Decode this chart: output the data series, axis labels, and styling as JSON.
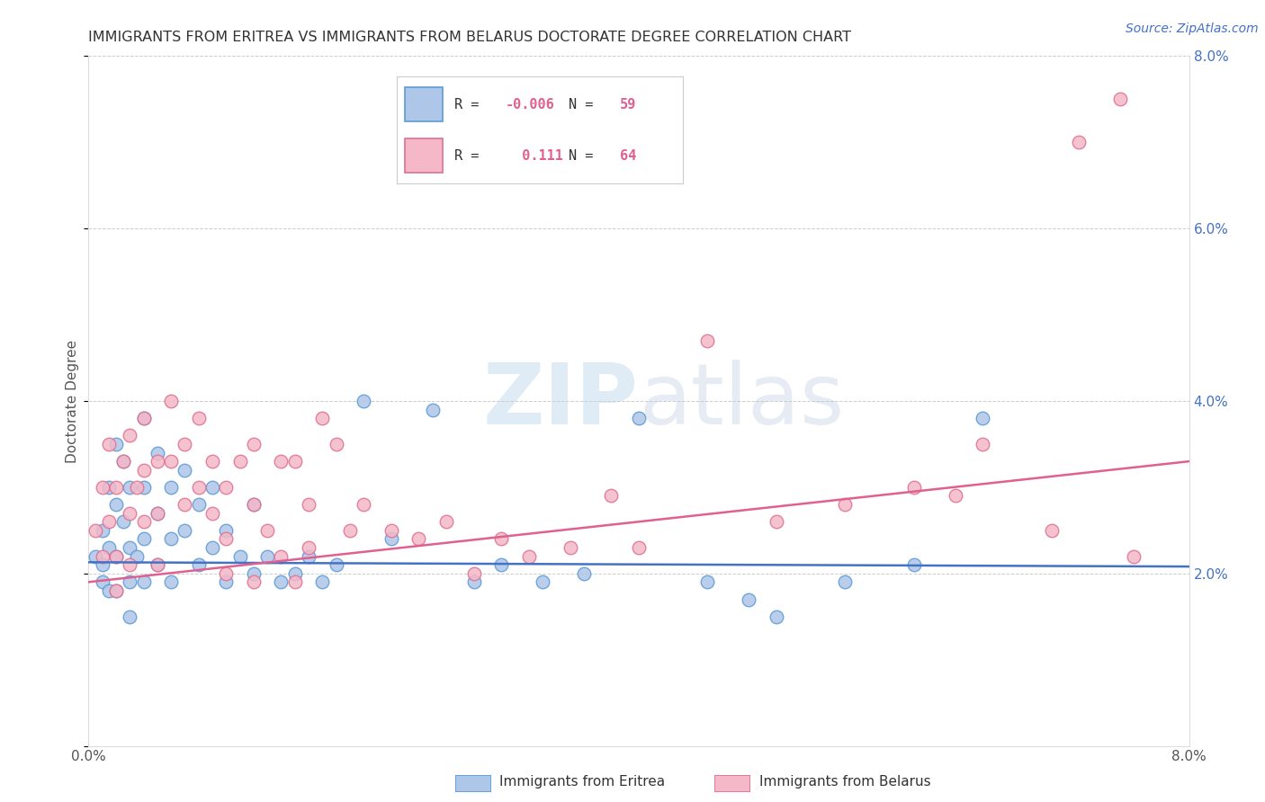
{
  "title": "IMMIGRANTS FROM ERITREA VS IMMIGRANTS FROM BELARUS DOCTORATE DEGREE CORRELATION CHART",
  "source": "Source: ZipAtlas.com",
  "ylabel": "Doctorate Degree",
  "xmin": 0.0,
  "xmax": 0.08,
  "ymin": 0.0,
  "ymax": 0.08,
  "eritrea_color": "#aec6e8",
  "eritrea_edge_color": "#5b9bd5",
  "belarus_color": "#f4b8c8",
  "belarus_edge_color": "#e07090",
  "eritrea_line_color": "#4472C4",
  "belarus_line_color": "#E06090",
  "legend_eritrea_label": "Immigrants from Eritrea",
  "legend_belarus_label": "Immigrants from Belarus",
  "legend_eritrea_R": "-0.006",
  "legend_eritrea_N": "59",
  "legend_belarus_R": "0.111",
  "legend_belarus_N": "64",
  "eritrea_line_x0": 0.0,
  "eritrea_line_y0": 0.0213,
  "eritrea_line_x1": 0.08,
  "eritrea_line_y1": 0.0208,
  "belarus_line_x0": 0.0,
  "belarus_line_y0": 0.019,
  "belarus_line_x1": 0.08,
  "belarus_line_y1": 0.033,
  "eritrea_x": [
    0.0005,
    0.001,
    0.001,
    0.001,
    0.0015,
    0.0015,
    0.0015,
    0.002,
    0.002,
    0.002,
    0.002,
    0.0025,
    0.0025,
    0.003,
    0.003,
    0.003,
    0.003,
    0.0035,
    0.004,
    0.004,
    0.004,
    0.004,
    0.005,
    0.005,
    0.005,
    0.006,
    0.006,
    0.006,
    0.007,
    0.007,
    0.008,
    0.008,
    0.009,
    0.009,
    0.01,
    0.01,
    0.011,
    0.012,
    0.012,
    0.013,
    0.014,
    0.015,
    0.016,
    0.017,
    0.018,
    0.02,
    0.022,
    0.025,
    0.028,
    0.03,
    0.033,
    0.036,
    0.04,
    0.045,
    0.048,
    0.05,
    0.055,
    0.06,
    0.065
  ],
  "eritrea_y": [
    0.022,
    0.021,
    0.025,
    0.019,
    0.03,
    0.023,
    0.018,
    0.035,
    0.028,
    0.022,
    0.018,
    0.033,
    0.026,
    0.03,
    0.023,
    0.019,
    0.015,
    0.022,
    0.038,
    0.03,
    0.024,
    0.019,
    0.034,
    0.027,
    0.021,
    0.03,
    0.024,
    0.019,
    0.032,
    0.025,
    0.028,
    0.021,
    0.03,
    0.023,
    0.025,
    0.019,
    0.022,
    0.028,
    0.02,
    0.022,
    0.019,
    0.02,
    0.022,
    0.019,
    0.021,
    0.04,
    0.024,
    0.039,
    0.019,
    0.021,
    0.019,
    0.02,
    0.038,
    0.019,
    0.017,
    0.015,
    0.019,
    0.021,
    0.038
  ],
  "belarus_x": [
    0.0005,
    0.001,
    0.001,
    0.0015,
    0.0015,
    0.002,
    0.002,
    0.002,
    0.0025,
    0.003,
    0.003,
    0.003,
    0.0035,
    0.004,
    0.004,
    0.004,
    0.005,
    0.005,
    0.005,
    0.006,
    0.006,
    0.007,
    0.007,
    0.008,
    0.008,
    0.009,
    0.009,
    0.01,
    0.01,
    0.011,
    0.012,
    0.012,
    0.013,
    0.014,
    0.015,
    0.016,
    0.017,
    0.018,
    0.019,
    0.02,
    0.022,
    0.024,
    0.026,
    0.028,
    0.03,
    0.032,
    0.035,
    0.038,
    0.04,
    0.045,
    0.05,
    0.055,
    0.06,
    0.063,
    0.065,
    0.07,
    0.072,
    0.075,
    0.076,
    0.01,
    0.012,
    0.014,
    0.015,
    0.016
  ],
  "belarus_y": [
    0.025,
    0.03,
    0.022,
    0.035,
    0.026,
    0.03,
    0.022,
    0.018,
    0.033,
    0.036,
    0.027,
    0.021,
    0.03,
    0.038,
    0.032,
    0.026,
    0.033,
    0.027,
    0.021,
    0.04,
    0.033,
    0.035,
    0.028,
    0.038,
    0.03,
    0.033,
    0.027,
    0.03,
    0.024,
    0.033,
    0.035,
    0.028,
    0.025,
    0.033,
    0.033,
    0.028,
    0.038,
    0.035,
    0.025,
    0.028,
    0.025,
    0.024,
    0.026,
    0.02,
    0.024,
    0.022,
    0.023,
    0.029,
    0.023,
    0.047,
    0.026,
    0.028,
    0.03,
    0.029,
    0.035,
    0.025,
    0.07,
    0.075,
    0.022,
    0.02,
    0.019,
    0.022,
    0.019,
    0.023
  ]
}
